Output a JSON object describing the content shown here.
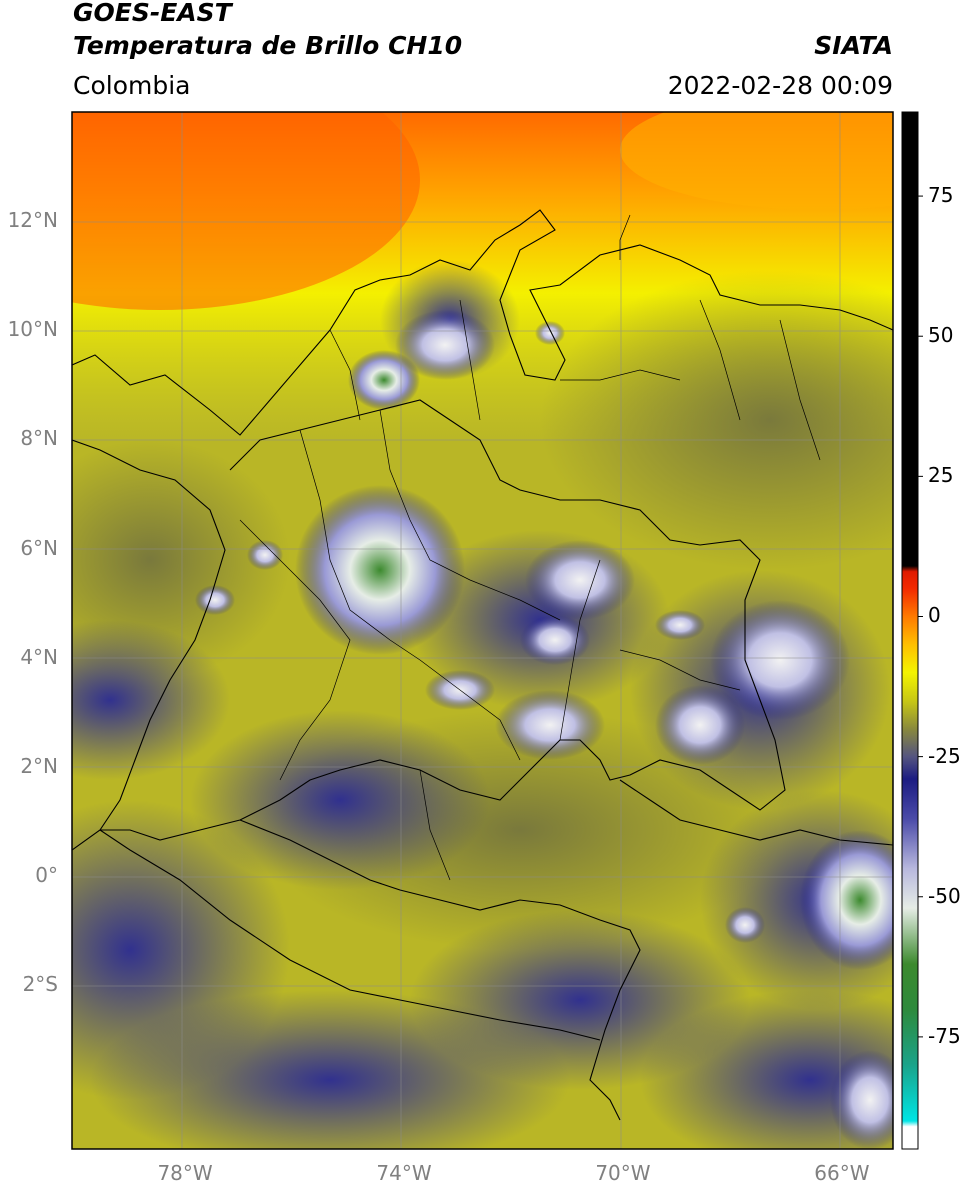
{
  "header": {
    "satellite": "GOES-EAST",
    "product": "Temperatura de Brillo CH10",
    "region": "Colombia",
    "agency": "SIATA",
    "timestamp": "2022-02-28 00:09"
  },
  "map": {
    "lon_range": [
      -80,
      -65
    ],
    "lat_range": [
      -5,
      14
    ],
    "lat_ticks": [
      {
        "label": "12°N",
        "value": 12
      },
      {
        "label": "10°N",
        "value": 10
      },
      {
        "label": "8°N",
        "value": 8
      },
      {
        "label": "6°N",
        "value": 6
      },
      {
        "label": "4°N",
        "value": 4
      },
      {
        "label": "2°N",
        "value": 2
      },
      {
        "label": "0°",
        "value": 0
      },
      {
        "label": "2°S",
        "value": -2
      }
    ],
    "lon_ticks": [
      {
        "label": "78°W",
        "value": -78
      },
      {
        "label": "74°W",
        "value": -74
      },
      {
        "label": "70°W",
        "value": -70
      },
      {
        "label": "66°W",
        "value": -66
      }
    ],
    "grid": true
  },
  "colorbar": {
    "range": [
      -95,
      90
    ],
    "ticks": [
      {
        "label": "75",
        "value": 75
      },
      {
        "label": "50",
        "value": 50
      },
      {
        "label": "25",
        "value": 25
      },
      {
        "label": "0",
        "value": 0
      },
      {
        "label": "-25",
        "value": -25
      },
      {
        "label": "-50",
        "value": -50
      },
      {
        "label": "-75",
        "value": -75
      }
    ],
    "stops": [
      {
        "value": -95,
        "color": "#ffffff"
      },
      {
        "value": -91,
        "color": "#ffffff"
      },
      {
        "value": -90,
        "color": "#00e5e5"
      },
      {
        "value": -80,
        "color": "#1aa38a"
      },
      {
        "value": -70,
        "color": "#2e8a3c"
      },
      {
        "value": -62,
        "color": "#3c8a2e"
      },
      {
        "value": -52,
        "color": "#e6ede6"
      },
      {
        "value": -45,
        "color": "#b8b8de"
      },
      {
        "value": -36,
        "color": "#4a4aa8"
      },
      {
        "value": -29,
        "color": "#1c1c82"
      },
      {
        "value": -25,
        "color": "#555580"
      },
      {
        "value": -20,
        "color": "#8a8a3c"
      },
      {
        "value": -15,
        "color": "#c8c814"
      },
      {
        "value": -10,
        "color": "#f4f400"
      },
      {
        "value": -5,
        "color": "#ffbf00"
      },
      {
        "value": 0,
        "color": "#ff7a00"
      },
      {
        "value": 5,
        "color": "#f22a00"
      },
      {
        "value": 8,
        "color": "#e01a00"
      },
      {
        "value": 9,
        "color": "#000000"
      },
      {
        "value": 90,
        "color": "#000000"
      }
    ]
  }
}
